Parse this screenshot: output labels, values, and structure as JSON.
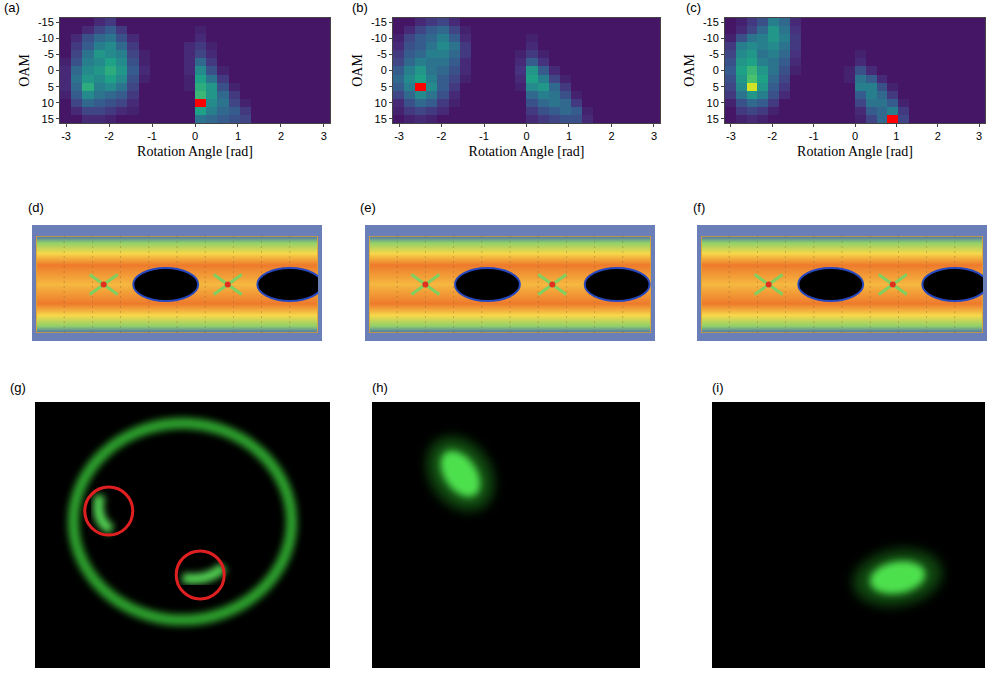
{
  "chart_data": [
    {
      "type": "heatmap",
      "panel": "(a)",
      "xlabel": "Rotation Angle [rad]",
      "ylabel": "OAM",
      "xlim": [
        -3.1416,
        3.1416
      ],
      "xticks": [
        -3,
        -2,
        -1,
        0,
        1,
        2,
        3
      ],
      "ylim": [
        16.25,
        -16.25
      ],
      "yticks": [
        -15,
        -10,
        -5,
        0,
        5,
        10,
        15
      ],
      "color_range": [
        0,
        100
      ],
      "x": [
        -3.011,
        -2.749,
        -2.487,
        -2.225,
        -1.963,
        -1.702,
        -1.44,
        -1.178,
        -0.916,
        -0.654,
        -0.393,
        -0.131,
        0.131,
        0.393,
        0.654,
        0.916,
        1.178,
        1.44,
        1.702,
        1.963,
        2.225,
        2.487,
        2.749,
        3.011
      ],
      "y": [
        -15,
        -12.5,
        -10,
        -7.5,
        -5,
        -2.5,
        0,
        2.5,
        5,
        7.5,
        10,
        12.5,
        15
      ],
      "cells": [
        [
          5,
          5,
          5,
          10,
          15,
          5,
          5,
          5,
          5,
          5,
          5,
          5,
          5,
          5,
          5,
          5,
          5,
          5,
          5,
          5,
          5,
          5,
          5,
          5
        ],
        [
          5,
          5,
          10,
          20,
          30,
          15,
          5,
          5,
          5,
          5,
          5,
          5,
          8,
          5,
          5,
          5,
          5,
          5,
          5,
          5,
          5,
          5,
          5,
          5
        ],
        [
          5,
          10,
          25,
          35,
          40,
          25,
          10,
          5,
          5,
          5,
          5,
          5,
          10,
          5,
          5,
          5,
          5,
          5,
          5,
          5,
          5,
          5,
          5,
          5
        ],
        [
          5,
          15,
          30,
          45,
          50,
          35,
          15,
          5,
          5,
          5,
          5,
          10,
          15,
          8,
          5,
          5,
          5,
          5,
          5,
          5,
          5,
          5,
          5,
          5
        ],
        [
          5,
          20,
          40,
          55,
          50,
          45,
          20,
          8,
          5,
          5,
          5,
          10,
          20,
          10,
          5,
          5,
          5,
          5,
          5,
          5,
          5,
          5,
          5,
          5
        ],
        [
          8,
          25,
          45,
          50,
          60,
          50,
          25,
          8,
          5,
          5,
          5,
          10,
          35,
          15,
          5,
          5,
          5,
          5,
          5,
          5,
          5,
          5,
          5,
          5
        ],
        [
          10,
          35,
          50,
          55,
          65,
          55,
          30,
          10,
          5,
          5,
          5,
          10,
          50,
          25,
          8,
          5,
          5,
          5,
          5,
          5,
          5,
          5,
          5,
          5
        ],
        [
          10,
          40,
          55,
          50,
          60,
          50,
          25,
          8,
          5,
          5,
          5,
          8,
          60,
          40,
          15,
          5,
          5,
          5,
          5,
          5,
          5,
          5,
          5,
          5
        ],
        [
          10,
          35,
          65,
          45,
          50,
          40,
          20,
          5,
          5,
          5,
          5,
          8,
          65,
          55,
          25,
          8,
          5,
          5,
          5,
          5,
          5,
          5,
          5,
          5
        ],
        [
          8,
          30,
          50,
          40,
          35,
          30,
          15,
          5,
          5,
          5,
          5,
          5,
          70,
          55,
          35,
          15,
          5,
          5,
          5,
          5,
          5,
          5,
          5,
          5
        ],
        [
          5,
          20,
          35,
          30,
          25,
          20,
          10,
          5,
          5,
          5,
          5,
          5,
          100,
          50,
          40,
          20,
          8,
          5,
          5,
          5,
          5,
          5,
          5,
          5
        ],
        [
          5,
          10,
          20,
          20,
          15,
          10,
          8,
          5,
          5,
          5,
          5,
          5,
          60,
          45,
          35,
          30,
          15,
          5,
          5,
          5,
          5,
          5,
          5,
          5
        ],
        [
          5,
          5,
          10,
          10,
          8,
          5,
          5,
          5,
          5,
          5,
          5,
          5,
          40,
          35,
          30,
          25,
          20,
          5,
          5,
          5,
          5,
          5,
          5,
          5
        ]
      ]
    },
    {
      "type": "heatmap",
      "panel": "(b)",
      "xlabel": "Rotation Angle [rad]",
      "ylabel": "OAM",
      "xlim": [
        -3.1416,
        3.1416
      ],
      "xticks": [
        -3,
        -2,
        -1,
        0,
        1,
        2,
        3
      ],
      "ylim": [
        16.25,
        -16.25
      ],
      "yticks": [
        -15,
        -10,
        -5,
        0,
        5,
        10,
        15
      ],
      "color_range": [
        0,
        100
      ],
      "x": [
        -3.011,
        -2.749,
        -2.487,
        -2.225,
        -1.963,
        -1.702,
        -1.44,
        -1.178,
        -0.916,
        -0.654,
        -0.393,
        -0.131,
        0.131,
        0.393,
        0.654,
        0.916,
        1.178,
        1.44,
        1.702,
        1.963,
        2.225,
        2.487,
        2.749,
        3.011
      ],
      "y": [
        -15,
        -12.5,
        -10,
        -7.5,
        -5,
        -2.5,
        0,
        2.5,
        5,
        7.5,
        10,
        12.5,
        15
      ],
      "cells": [
        [
          5,
          5,
          10,
          15,
          20,
          10,
          5,
          5,
          5,
          5,
          5,
          5,
          5,
          5,
          5,
          5,
          5,
          5,
          5,
          5,
          5,
          5,
          5,
          5
        ],
        [
          5,
          10,
          20,
          30,
          35,
          20,
          8,
          5,
          5,
          5,
          5,
          5,
          5,
          5,
          5,
          5,
          5,
          5,
          5,
          5,
          5,
          5,
          5,
          5
        ],
        [
          8,
          20,
          30,
          35,
          45,
          30,
          10,
          5,
          5,
          5,
          5,
          5,
          8,
          5,
          5,
          5,
          5,
          5,
          5,
          5,
          5,
          5,
          5,
          5
        ],
        [
          10,
          25,
          30,
          40,
          50,
          40,
          15,
          5,
          5,
          5,
          5,
          5,
          10,
          5,
          5,
          5,
          5,
          5,
          5,
          5,
          5,
          5,
          5,
          5
        ],
        [
          15,
          30,
          35,
          45,
          45,
          35,
          15,
          5,
          5,
          5,
          5,
          8,
          15,
          8,
          5,
          5,
          5,
          5,
          5,
          5,
          5,
          5,
          5,
          5
        ],
        [
          20,
          35,
          45,
          40,
          40,
          30,
          10,
          5,
          5,
          5,
          5,
          10,
          30,
          12,
          5,
          5,
          5,
          5,
          5,
          5,
          5,
          5,
          5,
          5
        ],
        [
          30,
          45,
          55,
          40,
          35,
          25,
          10,
          5,
          5,
          5,
          5,
          12,
          55,
          30,
          10,
          5,
          5,
          5,
          5,
          5,
          5,
          5,
          5,
          5
        ],
        [
          35,
          50,
          60,
          45,
          30,
          20,
          8,
          5,
          5,
          5,
          5,
          10,
          60,
          45,
          20,
          8,
          5,
          5,
          5,
          5,
          5,
          5,
          5,
          5
        ],
        [
          30,
          45,
          100,
          50,
          30,
          15,
          5,
          5,
          5,
          5,
          5,
          8,
          50,
          55,
          35,
          15,
          5,
          5,
          5,
          5,
          5,
          5,
          5,
          5
        ],
        [
          20,
          35,
          50,
          40,
          25,
          10,
          5,
          5,
          5,
          5,
          5,
          5,
          35,
          45,
          40,
          25,
          8,
          5,
          5,
          5,
          5,
          5,
          5,
          5
        ],
        [
          10,
          25,
          35,
          30,
          15,
          8,
          5,
          5,
          5,
          5,
          5,
          5,
          25,
          35,
          40,
          35,
          15,
          5,
          5,
          5,
          5,
          5,
          5,
          5
        ],
        [
          8,
          15,
          20,
          15,
          10,
          5,
          5,
          5,
          5,
          5,
          5,
          5,
          15,
          25,
          30,
          35,
          30,
          8,
          5,
          5,
          5,
          5,
          5,
          5
        ],
        [
          5,
          8,
          10,
          8,
          5,
          5,
          5,
          5,
          5,
          5,
          5,
          5,
          10,
          15,
          20,
          25,
          25,
          10,
          5,
          5,
          5,
          5,
          5,
          5
        ]
      ]
    },
    {
      "type": "heatmap",
      "panel": "(c)",
      "xlabel": "Rotation Angle [rad]",
      "ylabel": "OAM",
      "xlim": [
        -3.1416,
        3.1416
      ],
      "xticks": [
        -3,
        -2,
        -1,
        0,
        1,
        2,
        3
      ],
      "ylim": [
        16.25,
        -16.25
      ],
      "yticks": [
        -15,
        -10,
        -5,
        0,
        5,
        10,
        15
      ],
      "color_range": [
        0,
        100
      ],
      "x": [
        -3.011,
        -2.749,
        -2.487,
        -2.225,
        -1.963,
        -1.702,
        -1.44,
        -1.178,
        -0.916,
        -0.654,
        -0.393,
        -0.131,
        0.131,
        0.393,
        0.654,
        0.916,
        1.178,
        1.44,
        1.702,
        1.963,
        2.225,
        2.487,
        2.749,
        3.011
      ],
      "y": [
        -15,
        -12.5,
        -10,
        -7.5,
        -5,
        -2.5,
        0,
        2.5,
        5,
        7.5,
        10,
        12.5,
        15
      ],
      "cells": [
        [
          5,
          8,
          15,
          25,
          45,
          35,
          10,
          5,
          5,
          5,
          5,
          5,
          5,
          5,
          5,
          5,
          5,
          5,
          5,
          5,
          5,
          5,
          5,
          5
        ],
        [
          5,
          10,
          20,
          35,
          55,
          40,
          12,
          5,
          5,
          5,
          5,
          5,
          5,
          5,
          5,
          5,
          5,
          5,
          5,
          5,
          5,
          5,
          5,
          5
        ],
        [
          8,
          25,
          40,
          45,
          55,
          45,
          15,
          5,
          5,
          5,
          5,
          5,
          5,
          5,
          5,
          5,
          5,
          5,
          5,
          5,
          5,
          5,
          5,
          5
        ],
        [
          15,
          45,
          50,
          45,
          50,
          40,
          15,
          5,
          5,
          5,
          5,
          5,
          5,
          5,
          5,
          5,
          5,
          5,
          5,
          5,
          5,
          5,
          5,
          5
        ],
        [
          20,
          50,
          55,
          40,
          45,
          35,
          12,
          5,
          5,
          5,
          5,
          5,
          8,
          5,
          5,
          5,
          5,
          5,
          5,
          5,
          5,
          5,
          5,
          5
        ],
        [
          25,
          55,
          60,
          45,
          40,
          30,
          10,
          5,
          5,
          5,
          5,
          5,
          10,
          5,
          5,
          5,
          5,
          5,
          5,
          5,
          5,
          5,
          5,
          5
        ],
        [
          30,
          60,
          70,
          55,
          40,
          25,
          8,
          5,
          5,
          5,
          5,
          8,
          25,
          10,
          5,
          5,
          5,
          5,
          5,
          5,
          5,
          5,
          5,
          5
        ],
        [
          25,
          55,
          75,
          60,
          35,
          20,
          5,
          5,
          5,
          5,
          5,
          8,
          40,
          30,
          10,
          5,
          5,
          5,
          5,
          5,
          5,
          5,
          5,
          5
        ],
        [
          20,
          50,
          90,
          55,
          30,
          15,
          5,
          5,
          5,
          5,
          5,
          5,
          45,
          45,
          25,
          8,
          5,
          5,
          5,
          5,
          5,
          5,
          5,
          5
        ],
        [
          15,
          40,
          55,
          45,
          25,
          10,
          5,
          5,
          5,
          5,
          5,
          5,
          30,
          45,
          35,
          15,
          5,
          5,
          5,
          5,
          5,
          5,
          5,
          5
        ],
        [
          8,
          25,
          35,
          30,
          15,
          5,
          5,
          5,
          5,
          5,
          5,
          5,
          20,
          40,
          40,
          30,
          8,
          5,
          5,
          5,
          5,
          5,
          5,
          5
        ],
        [
          5,
          15,
          20,
          15,
          8,
          5,
          5,
          5,
          5,
          5,
          5,
          5,
          10,
          30,
          35,
          45,
          15,
          5,
          5,
          5,
          5,
          5,
          5,
          5
        ],
        [
          5,
          8,
          10,
          8,
          5,
          5,
          5,
          5,
          5,
          5,
          5,
          5,
          8,
          20,
          35,
          100,
          20,
          5,
          5,
          5,
          5,
          5,
          5,
          5
        ]
      ]
    }
  ],
  "eye_diagrams": [
    "(d)",
    "(e)",
    "(f)"
  ],
  "beam_images": [
    "(g)",
    "(h)",
    "(i)"
  ]
}
